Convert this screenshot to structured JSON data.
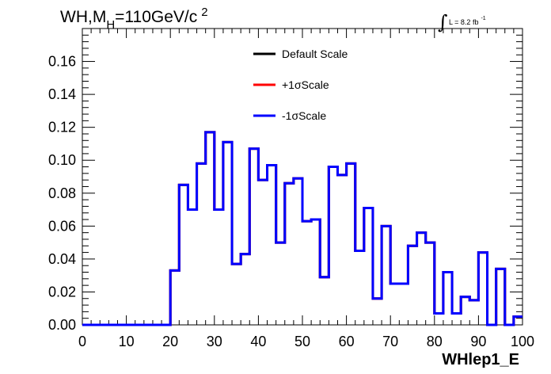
{
  "chart_data": {
    "type": "line",
    "title": {
      "prefix": "WH,M",
      "subscript": "H",
      "middle": "=110GeV/c",
      "superscript": "2"
    },
    "lumi": {
      "integral_symbol": "∫",
      "text": "L = 8.2 fb",
      "superscript": "-1"
    },
    "xlabel": "WHlep1_E",
    "ylabel": "",
    "xlim": [
      0,
      100
    ],
    "ylim": [
      0,
      0.18
    ],
    "x_ticks": [
      "0",
      "10",
      "20",
      "30",
      "40",
      "50",
      "60",
      "70",
      "80",
      "90",
      "100"
    ],
    "y_ticks": [
      "0.00",
      "0.02",
      "0.04",
      "0.06",
      "0.08",
      "0.10",
      "0.12",
      "0.14",
      "0.16"
    ],
    "bin_edges": [
      0,
      2,
      4,
      6,
      8,
      10,
      12,
      14,
      16,
      18,
      20,
      22,
      24,
      26,
      28,
      30,
      32,
      34,
      36,
      38,
      40,
      42,
      44,
      46,
      48,
      50,
      52,
      54,
      56,
      58,
      60,
      62,
      64,
      66,
      68,
      70,
      72,
      74,
      76,
      78,
      80,
      82,
      84,
      86,
      88,
      90,
      92,
      94,
      96,
      98,
      100
    ],
    "series": [
      {
        "name": "Default Scale",
        "color": "#000000",
        "values": [
          0,
          0,
          0,
          0,
          0,
          0,
          0,
          0,
          0,
          0,
          0.033,
          0.085,
          0.07,
          0.098,
          0.117,
          0.07,
          0.111,
          0.037,
          0.043,
          0.107,
          0.088,
          0.097,
          0.05,
          0.086,
          0.089,
          0.063,
          0.064,
          0.029,
          0.096,
          0.091,
          0.098,
          0.045,
          0.071,
          0.016,
          0.06,
          0.025,
          0.025,
          0.048,
          0.056,
          0.05,
          0.007,
          0.032,
          0.007,
          0.017,
          0.015,
          0.044,
          0.0,
          0.034,
          0.0,
          0.005
        ]
      },
      {
        "name": "+1σScale",
        "color": "#ff0000",
        "values": [
          0,
          0,
          0,
          0,
          0,
          0,
          0,
          0,
          0,
          0,
          0.033,
          0.085,
          0.07,
          0.098,
          0.117,
          0.07,
          0.111,
          0.037,
          0.043,
          0.107,
          0.088,
          0.097,
          0.05,
          0.086,
          0.089,
          0.063,
          0.064,
          0.029,
          0.096,
          0.091,
          0.098,
          0.045,
          0.071,
          0.016,
          0.06,
          0.025,
          0.025,
          0.048,
          0.056,
          0.05,
          0.007,
          0.032,
          0.007,
          0.017,
          0.015,
          0.044,
          0.0,
          0.034,
          0.0,
          0.005
        ]
      },
      {
        "name": "-1σScale",
        "color": "#0000ff",
        "values": [
          0,
          0,
          0,
          0,
          0,
          0,
          0,
          0,
          0,
          0,
          0.033,
          0.085,
          0.07,
          0.098,
          0.117,
          0.07,
          0.111,
          0.037,
          0.043,
          0.107,
          0.088,
          0.097,
          0.05,
          0.086,
          0.089,
          0.063,
          0.064,
          0.029,
          0.096,
          0.091,
          0.098,
          0.045,
          0.071,
          0.016,
          0.06,
          0.025,
          0.025,
          0.048,
          0.056,
          0.05,
          0.007,
          0.032,
          0.007,
          0.017,
          0.015,
          0.044,
          0.0,
          0.034,
          0.0,
          0.005
        ]
      }
    ],
    "legend": [
      "Default Scale",
      "+1σScale",
      "-1σScale"
    ],
    "legend_placement": "top-center",
    "grid": false
  }
}
